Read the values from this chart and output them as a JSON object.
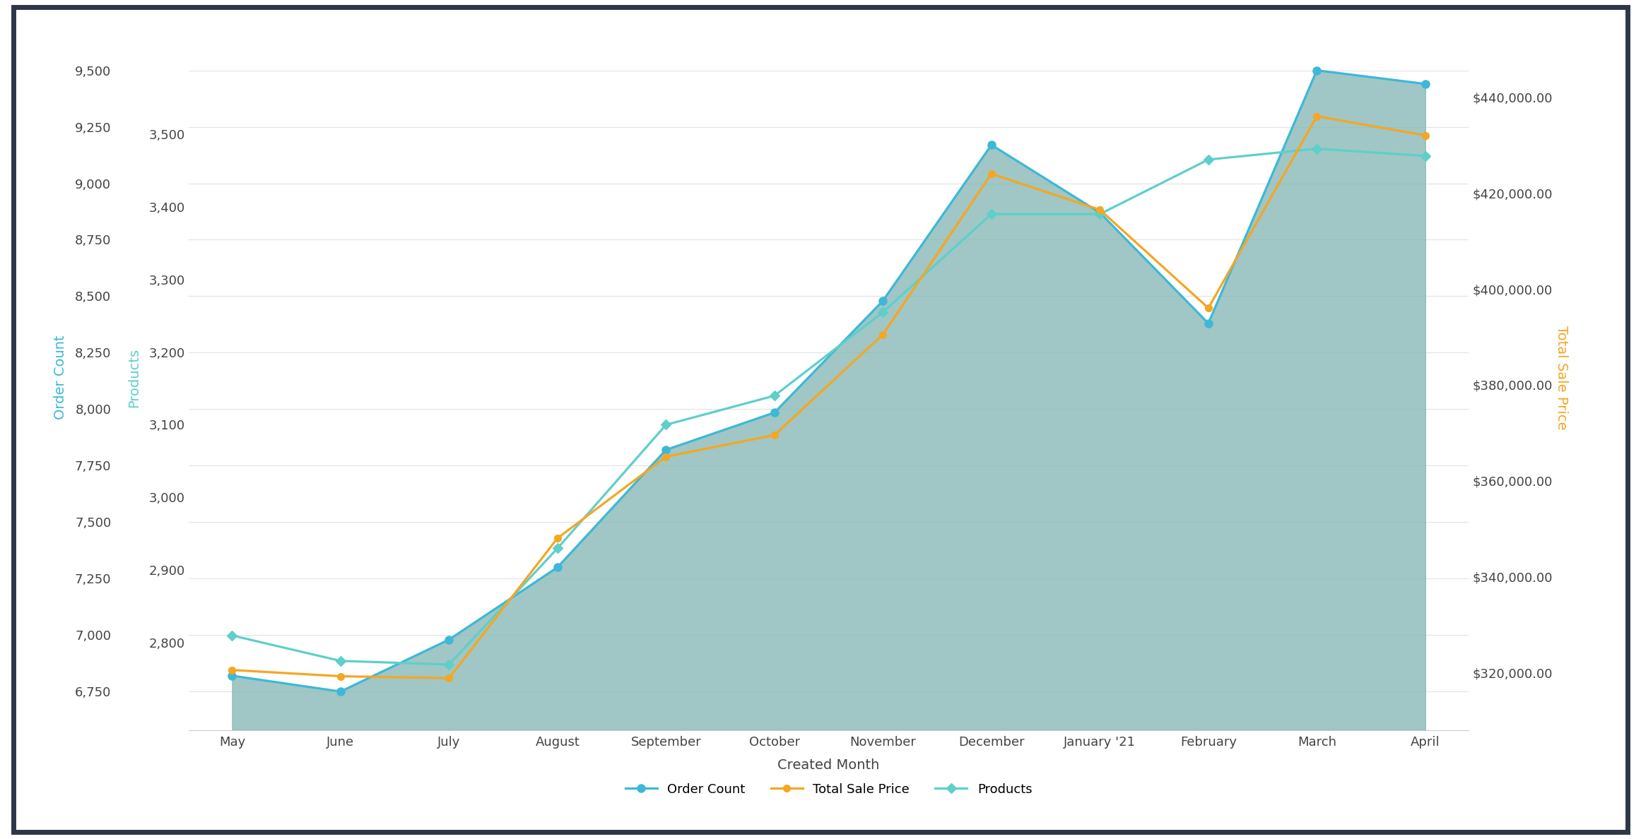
{
  "months": [
    "May",
    "June",
    "July",
    "August",
    "September",
    "October",
    "November",
    "December",
    "January '21",
    "February",
    "March",
    "April"
  ],
  "order_count": [
    6820,
    6750,
    6980,
    7300,
    7820,
    7985,
    8480,
    9170,
    8870,
    8380,
    9500,
    9440
  ],
  "total_sale_price_dollars": [
    320500,
    319200,
    318800,
    348000,
    365000,
    369500,
    390500,
    424000,
    416500,
    396000,
    436000,
    432000
  ],
  "products_count": [
    2810,
    2775,
    2770,
    2930,
    3100,
    3140,
    3255,
    3390,
    3390,
    3465,
    3480,
    3470
  ],
  "area_fill_color": "#80b5b2",
  "area_fill_alpha": 0.75,
  "order_count_color": "#3db8d8",
  "total_sale_price_color": "#f5a623",
  "products_color": "#5ecfca",
  "background_color": "#ffffff",
  "border_color": "#2d3748",
  "grid_color": "#e2e2e2",
  "left_axis_label_color": "#5ecfca",
  "middle_axis_label_color": "#3db8d8",
  "right_axis_label_color": "#f5a623",
  "tick_label_color": "#444444",
  "xlabel": "Created Month",
  "ylabel_left": "Products",
  "ylabel_middle": "Order Count",
  "ylabel_right": "Total Sale Price",
  "products_ylim": [
    2680,
    3650
  ],
  "order_count_ylim": [
    6580,
    9700
  ],
  "total_sale_ylim": [
    308000,
    455000
  ],
  "products_yticks": [
    2800,
    2900,
    3000,
    3100,
    3200,
    3300,
    3400,
    3500
  ],
  "order_count_yticks": [
    6750,
    7000,
    7250,
    7500,
    7750,
    8000,
    8250,
    8500,
    8750,
    9000,
    9250,
    9500
  ],
  "total_sale_yticks": [
    320000,
    340000,
    360000,
    380000,
    400000,
    420000,
    440000
  ],
  "legend_labels": [
    "Order Count",
    "Total Sale Price",
    "Products"
  ],
  "marker_size": 8,
  "line_width": 2.3,
  "tick_fontsize": 13,
  "label_fontsize": 14
}
